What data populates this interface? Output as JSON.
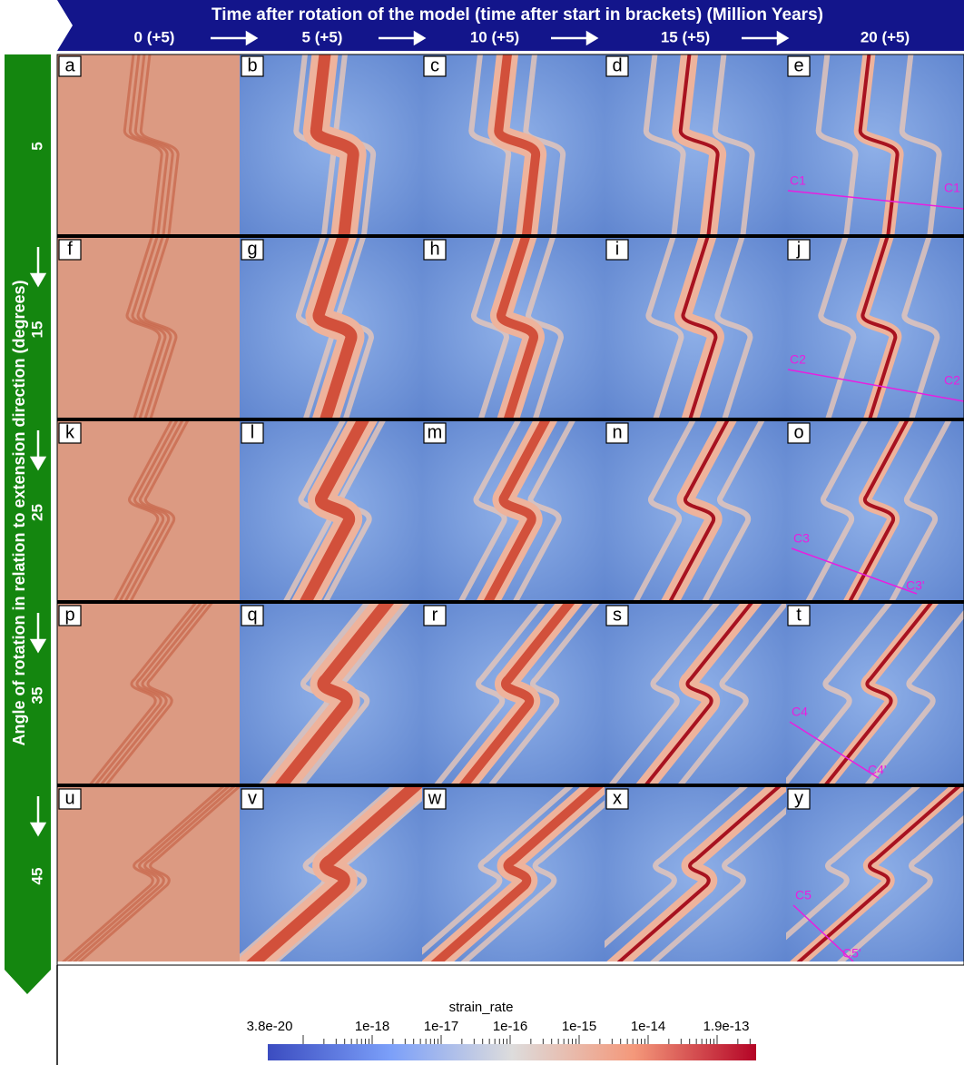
{
  "header": {
    "title": "Time after rotation of the model (time after start in brackets) (Million Years)",
    "times": [
      "0 (+5)",
      "5 (+5)",
      "10 (+5)",
      "15 (+5)",
      "20 (+5)"
    ]
  },
  "side": {
    "title": "Angle of rotation in relation to extension direction (degrees)",
    "angles": [
      "5",
      "15",
      "25",
      "35",
      "45"
    ]
  },
  "panels": {
    "letters": [
      "a",
      "b",
      "c",
      "d",
      "e",
      "f",
      "g",
      "h",
      "i",
      "j",
      "k",
      "l",
      "m",
      "n",
      "o",
      "p",
      "q",
      "r",
      "s",
      "t",
      "u",
      "v",
      "w",
      "x",
      "y"
    ]
  },
  "sections": [
    {
      "start": "C1",
      "end": "C1"
    },
    {
      "start": "C2",
      "end": "C2"
    },
    {
      "start": "C3",
      "end": "C3'"
    },
    {
      "start": "C4",
      "end": "C4'"
    },
    {
      "start": "C5",
      "end": "C5'"
    }
  ],
  "colorbar": {
    "title": "strain_rate",
    "ticks": [
      "3.8e-20",
      "1e-18",
      "1e-17",
      "1e-16",
      "1e-15",
      "1e-14",
      "1.9e-13"
    ]
  }
}
